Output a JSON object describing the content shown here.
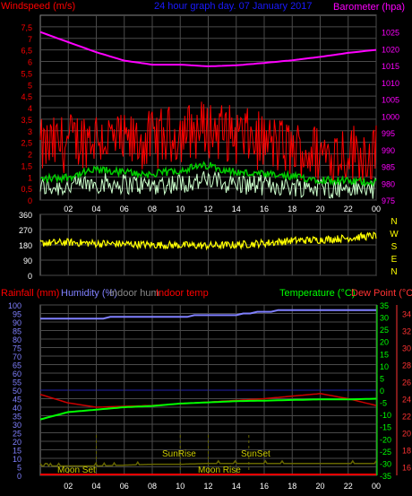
{
  "header": {
    "windspeed_label": "Windspeed (m/s)",
    "title": "24 hour graph day. 07 January 2017",
    "barometer_label": "Barometer (hpa)"
  },
  "compass": [
    "N",
    "W",
    "S",
    "E",
    "N"
  ],
  "lower_header": {
    "rainfall": "Rainfall (mm)",
    "humidity": "Humidity (%)",
    "indoor_hum": "Indoor hum",
    "indoor_temp": "Indoor temp",
    "temperature": "Temperature (°C)",
    "dewpoint": "Dew Point (°C)"
  },
  "events": {
    "moon_set": "Moon Set",
    "sunrise": "SunRise",
    "moon_rise": "Moon Rise",
    "sunset": "SunSet"
  },
  "colors": {
    "windspeed": "#ff0000",
    "windgust_avg": "#00cc00",
    "wind_light": "#ccffcc",
    "barometer": "#ff00ff",
    "direction": "#ffff00",
    "humidity": "#8080ff",
    "temperature": "#00ff00",
    "dewpoint": "#cc0000",
    "rainfall": "#ff0000",
    "indoor_hum": "#666600",
    "axis_text": "#ffffff",
    "grid": "#4a4a4a"
  },
  "chart_data": [
    {
      "type": "line",
      "name": "wind_and_pressure",
      "x_ticks": [
        "02",
        "04",
        "06",
        "08",
        "10",
        "12",
        "14",
        "16",
        "18",
        "20",
        "22",
        "00"
      ],
      "y_left_ticks": [
        "0",
        "0,5",
        "1",
        "1,5",
        "2",
        "2,5",
        "3",
        "3,5",
        "4",
        "4,5",
        "5",
        "5,5",
        "6",
        "6,5",
        "7",
        "7,5"
      ],
      "y_left_range": [
        0,
        8
      ],
      "y_right_ticks": [
        "975",
        "980",
        "985",
        "990",
        "995",
        "1000",
        "1005",
        "1010",
        "1015",
        "1020",
        "1025"
      ],
      "y_right_range": [
        975,
        1030
      ],
      "hours": [
        0,
        2,
        4,
        6,
        8,
        10,
        12,
        14,
        16,
        18,
        20,
        22,
        24
      ],
      "barometer_hpa": [
        1025,
        1022,
        1019,
        1016.5,
        1015.3,
        1015.3,
        1014.8,
        1015.1,
        1015.8,
        1016.6,
        1017.6,
        1018.8,
        1019.7
      ],
      "windspeed_ms": [
        2.2,
        2.5,
        2.8,
        2.4,
        2.6,
        2.9,
        3.1,
        2.8,
        2.5,
        2.2,
        2.0,
        2.1,
        2.0
      ],
      "wind_avg_ms": [
        0.9,
        1.0,
        1.3,
        1.2,
        1.1,
        1.3,
        1.5,
        1.2,
        1.1,
        1.0,
        0.9,
        0.8,
        0.8
      ]
    },
    {
      "type": "scatter",
      "name": "wind_direction",
      "x_ticks": [
        "02",
        "04",
        "06",
        "08",
        "10",
        "12",
        "14",
        "16",
        "18",
        "20",
        "22",
        "00"
      ],
      "y_ticks": [
        "0",
        "90",
        "180",
        "270",
        "360"
      ],
      "y_range": [
        0,
        360
      ],
      "hours": [
        0,
        2,
        4,
        6,
        8,
        10,
        12,
        14,
        16,
        18,
        20,
        22,
        24
      ],
      "direction_deg": [
        190,
        195,
        188,
        185,
        180,
        178,
        175,
        180,
        190,
        205,
        210,
        220,
        235
      ]
    },
    {
      "type": "line",
      "name": "temperature_humidity",
      "x_ticks": [
        "02",
        "04",
        "06",
        "08",
        "10",
        "12",
        "14",
        "16",
        "18",
        "20",
        "22",
        "00"
      ],
      "y_left_ticks": [
        "0",
        "5",
        "10",
        "15",
        "20",
        "25",
        "30",
        "35",
        "40",
        "45",
        "50",
        "55",
        "60",
        "65",
        "70",
        "75",
        "80",
        "85",
        "90",
        "95",
        "100"
      ],
      "y_left_range": [
        0,
        100
      ],
      "y_temp_ticks": [
        "-35",
        "-30",
        "-25",
        "-20",
        "-15",
        "-10",
        "-5",
        "0",
        "5",
        "10",
        "15",
        "20",
        "25",
        "30",
        "35"
      ],
      "y_temp_range": [
        -35,
        35
      ],
      "y_dew_ticks": [
        "16",
        "18",
        "20",
        "22",
        "24",
        "26",
        "28",
        "30",
        "32",
        "34"
      ],
      "y_dew_range": [
        15,
        35
      ],
      "hours": [
        0,
        2,
        4,
        6,
        8,
        10,
        12,
        14,
        16,
        18,
        20,
        22,
        24
      ],
      "humidity_pct": [
        92,
        92,
        92,
        93,
        93,
        93,
        94,
        94,
        96,
        97,
        97,
        97,
        97
      ],
      "temperature_c": [
        -12,
        -9,
        -8,
        -7,
        -6.5,
        -5.5,
        -5,
        -4.5,
        -4.3,
        -4,
        -3.8,
        -3.8,
        -3.5
      ],
      "dewpoint_c": [
        24.5,
        23.5,
        23,
        23.1,
        23.2,
        23.4,
        23.6,
        23.8,
        24,
        24.3,
        24.6,
        24,
        23.2
      ],
      "indoor_hum_pct": [
        5.5,
        5.5,
        5.5,
        6,
        6.5,
        6.5,
        7,
        7,
        7,
        7,
        7,
        7,
        7
      ]
    }
  ]
}
